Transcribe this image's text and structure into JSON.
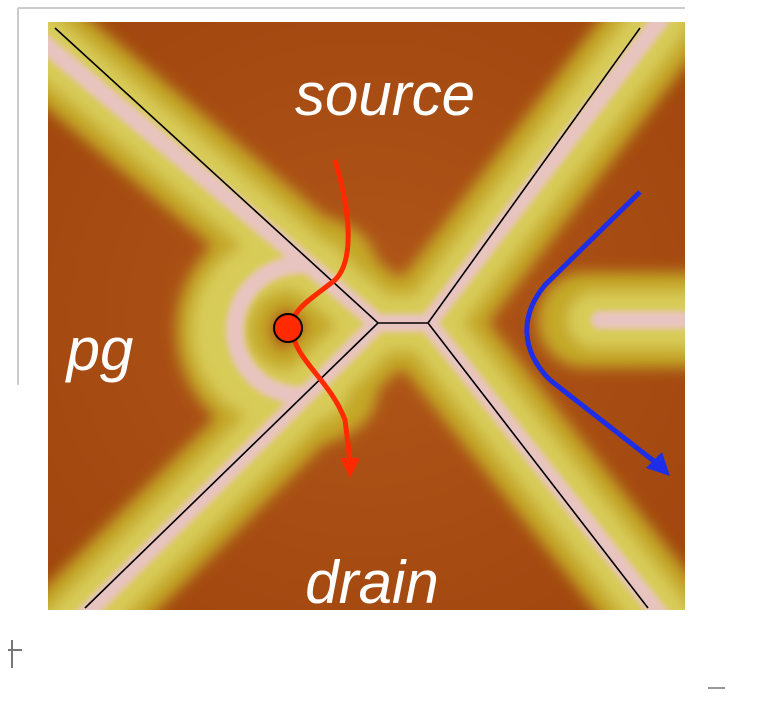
{
  "labels": {
    "source": "source",
    "pg": "pg",
    "drain": "drain"
  }
}
